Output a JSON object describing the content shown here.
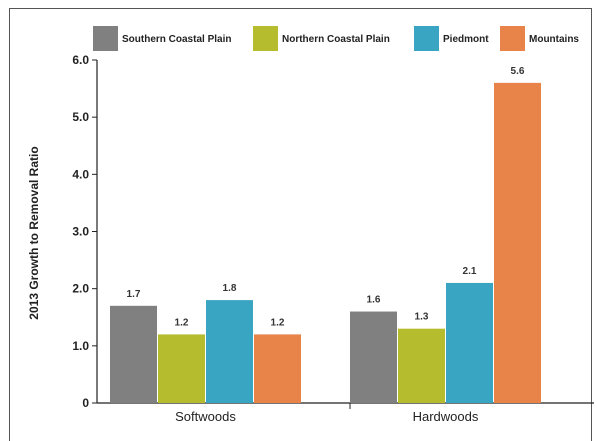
{
  "chart_data": {
    "type": "bar",
    "title": "",
    "xlabel": "",
    "ylabel": "2013 Growth to Removal Ratio",
    "categories": [
      "Softwoods",
      "Hardwoods"
    ],
    "ylim": [
      0,
      6.0
    ],
    "yticks": [
      "0",
      "1.0",
      "2.0",
      "3.0",
      "4.0",
      "5.0",
      "6.0"
    ],
    "legend_position": "top",
    "grid": false,
    "series": [
      {
        "name": "Southern Coastal Plain",
        "color": "#808080",
        "values": [
          1.7,
          1.6
        ],
        "labels": [
          "1.7",
          "1.6"
        ]
      },
      {
        "name": "Northern Coastal Plain",
        "color": "#b5bd2e",
        "values": [
          1.2,
          1.3
        ],
        "labels": [
          "1.2",
          "1.3"
        ]
      },
      {
        "name": "Piedmont",
        "color": "#3aa5c2",
        "values": [
          1.8,
          2.1
        ],
        "labels": [
          "1.8",
          "2.1"
        ]
      },
      {
        "name": "Mountains",
        "color": "#e8834a",
        "values": [
          1.2,
          5.6
        ],
        "labels": [
          "1.2",
          "5.6"
        ]
      }
    ]
  }
}
